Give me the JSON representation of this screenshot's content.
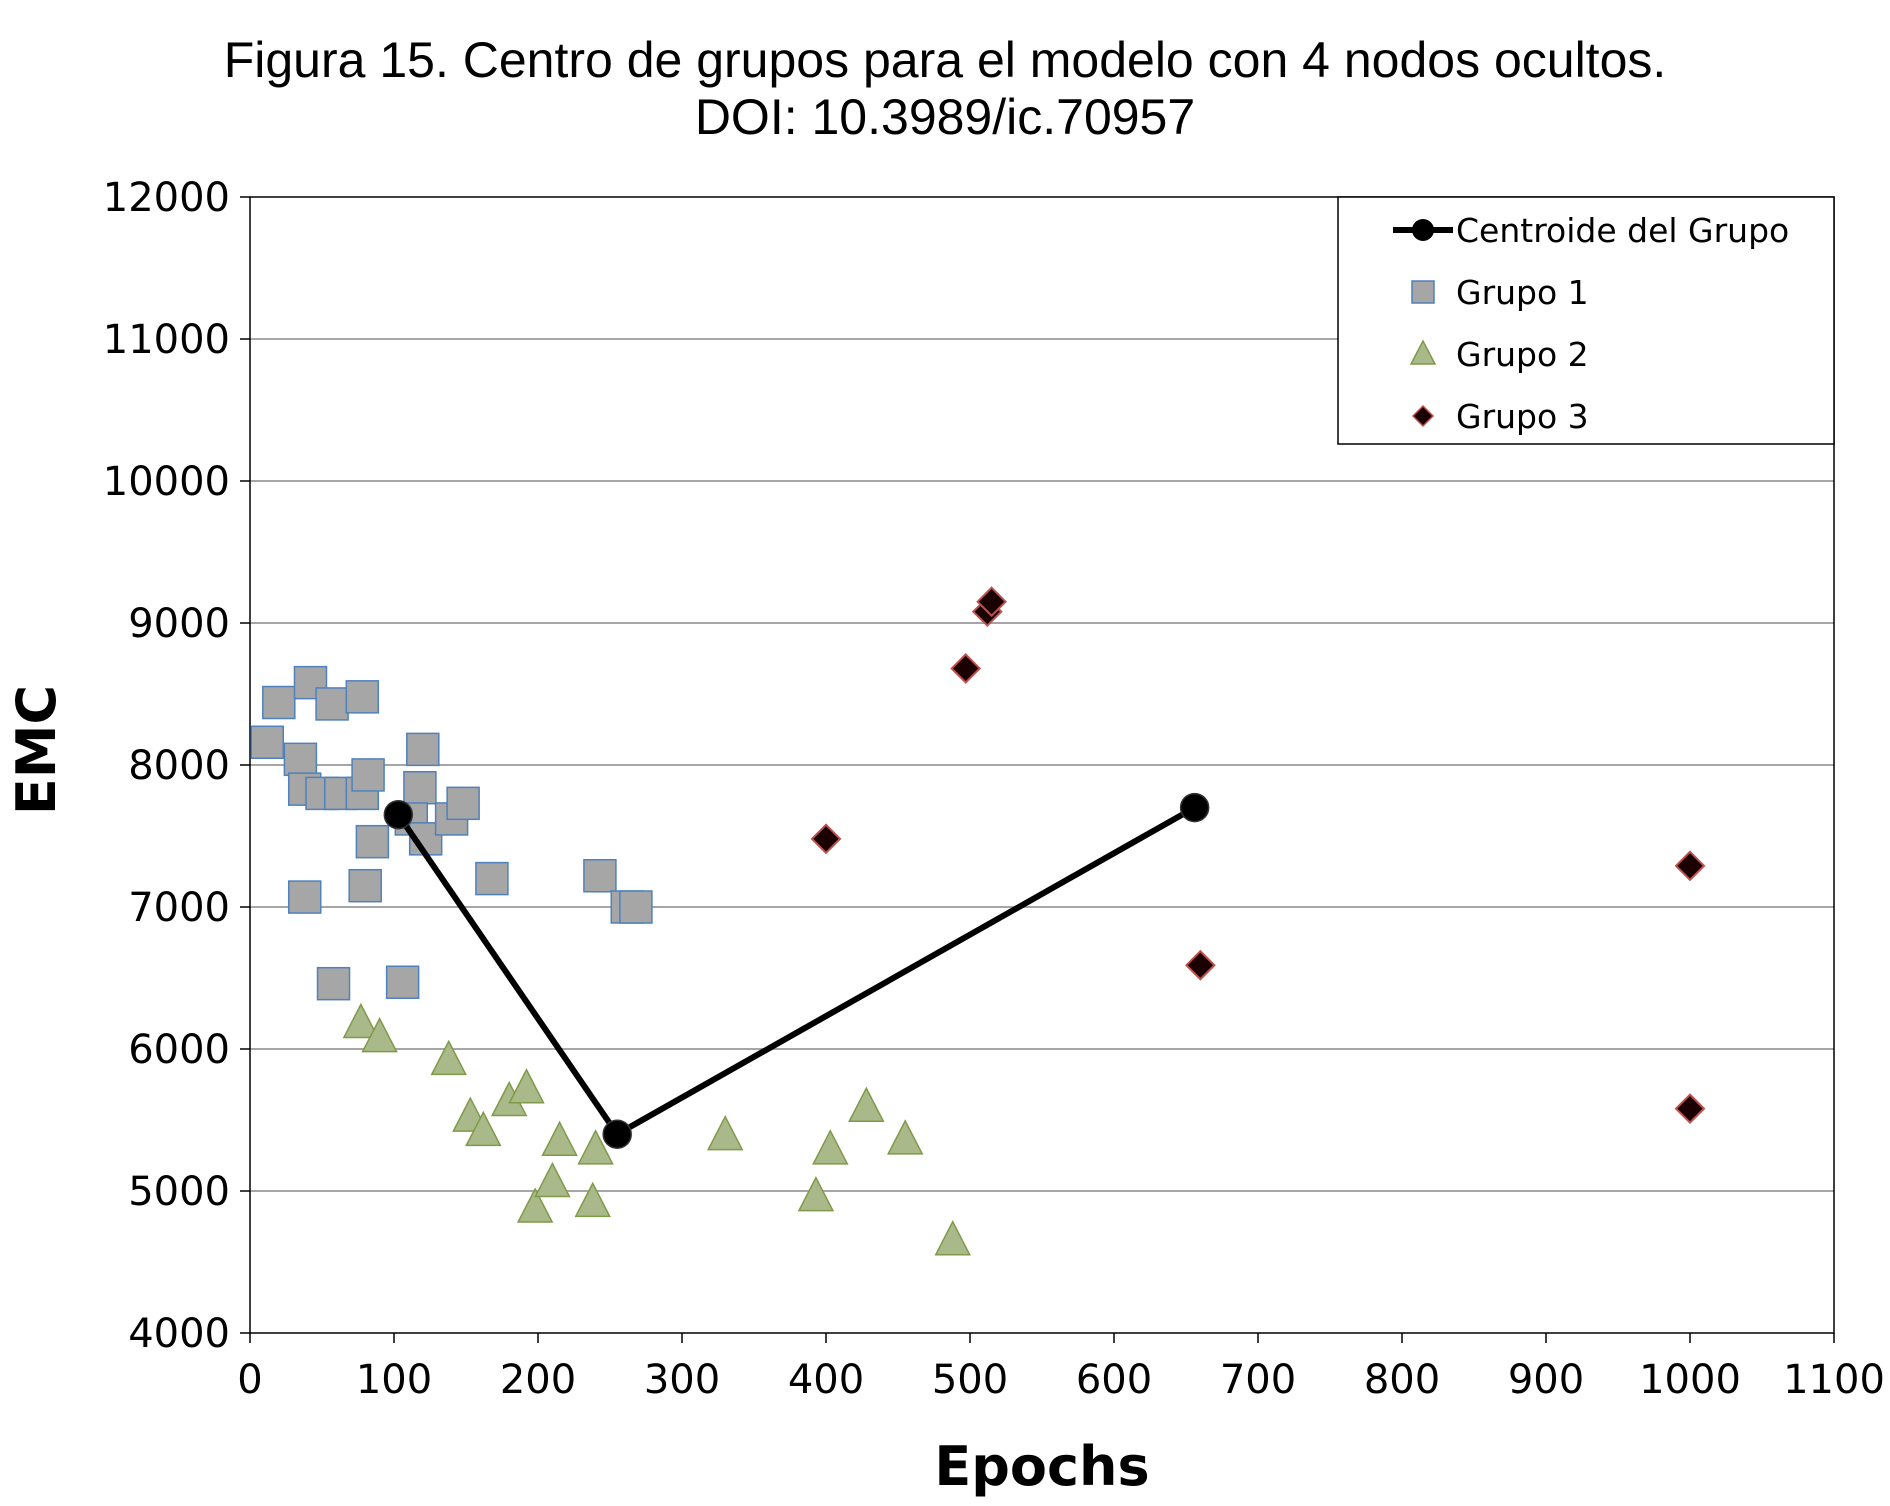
{
  "chart_data": {
    "type": "scatter",
    "title_lines": [
      "Figura 15. Centro de grupos para el modelo con 4 nodos ocultos.",
      "DOI: 10.3989/ic.70957"
    ],
    "xlabel": "Epochs",
    "ylabel": "EMC",
    "xlim": [
      0,
      1100
    ],
    "ylim": [
      4000,
      12000
    ],
    "xticks": [
      0,
      100,
      200,
      300,
      400,
      500,
      600,
      700,
      800,
      900,
      1000,
      1100
    ],
    "yticks": [
      4000,
      5000,
      6000,
      7000,
      8000,
      9000,
      10000,
      11000,
      12000
    ],
    "grid": "horizontal",
    "legend_position": "top-right",
    "series": [
      {
        "name": "Centroide del Grupo",
        "marker": "circle-line",
        "color": "#000000",
        "points": [
          [
            103,
            7650
          ],
          [
            255,
            5400
          ],
          [
            656,
            7700
          ]
        ]
      },
      {
        "name": "Grupo 1",
        "marker": "square",
        "color": "#a6a6a6",
        "edge": "#4f81bd",
        "points": [
          [
            12,
            8160
          ],
          [
            20,
            8440
          ],
          [
            42,
            8580
          ],
          [
            57,
            8430
          ],
          [
            78,
            8480
          ],
          [
            35,
            8040
          ],
          [
            38,
            7830
          ],
          [
            50,
            7800
          ],
          [
            63,
            7800
          ],
          [
            78,
            7800
          ],
          [
            82,
            7930
          ],
          [
            120,
            8110
          ],
          [
            118,
            7840
          ],
          [
            112,
            7620
          ],
          [
            122,
            7480
          ],
          [
            140,
            7620
          ],
          [
            148,
            7730
          ],
          [
            85,
            7460
          ],
          [
            38,
            7070
          ],
          [
            80,
            7150
          ],
          [
            168,
            7200
          ],
          [
            243,
            7220
          ],
          [
            262,
            7000
          ],
          [
            268,
            7000
          ],
          [
            58,
            6460
          ],
          [
            106,
            6470
          ]
        ]
      },
      {
        "name": "Grupo 2",
        "marker": "triangle",
        "color": "#a9b98a",
        "edge": "#7f9a48",
        "points": [
          [
            77,
            6180
          ],
          [
            90,
            6080
          ],
          [
            138,
            5920
          ],
          [
            153,
            5520
          ],
          [
            162,
            5420
          ],
          [
            180,
            5630
          ],
          [
            192,
            5720
          ],
          [
            198,
            4880
          ],
          [
            210,
            5060
          ],
          [
            215,
            5350
          ],
          [
            238,
            4920
          ],
          [
            240,
            5290
          ],
          [
            330,
            5390
          ],
          [
            393,
            4960
          ],
          [
            403,
            5290
          ],
          [
            428,
            5590
          ],
          [
            455,
            5360
          ],
          [
            488,
            4650
          ]
        ]
      },
      {
        "name": "Grupo 3",
        "marker": "diamond",
        "color": "#1a0000",
        "edge": "#c0504d",
        "points": [
          [
            400,
            7480
          ],
          [
            497,
            8680
          ],
          [
            512,
            9080
          ],
          [
            515,
            9150
          ],
          [
            660,
            6590
          ],
          [
            1000,
            7290
          ],
          [
            1000,
            5580
          ]
        ]
      }
    ]
  }
}
